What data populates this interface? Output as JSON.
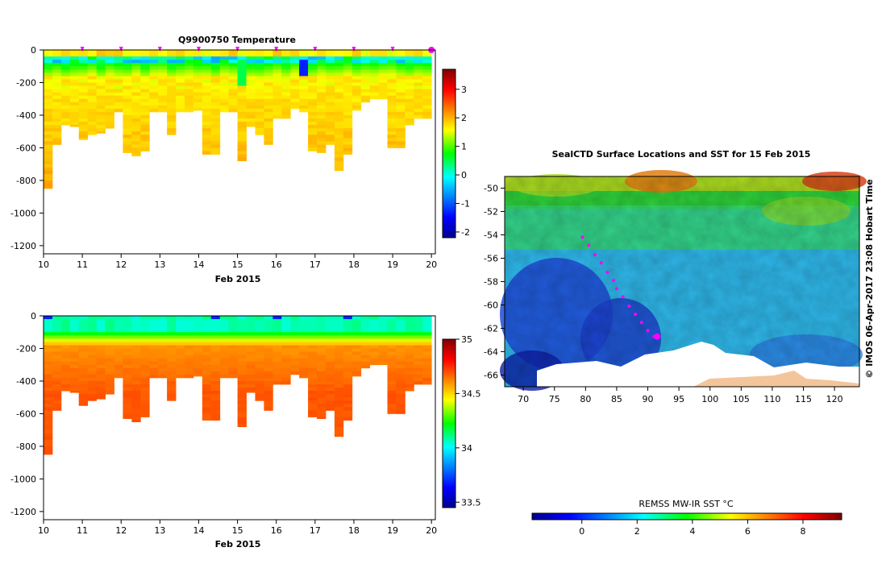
{
  "chart_data": [
    {
      "type": "heatmap",
      "title": "Q9900750  Temperature",
      "xlabel": "Feb 2015",
      "ylabel": "",
      "xlim": [
        10,
        20.1
      ],
      "ylim": [
        -1250,
        0
      ],
      "x_ticks": [
        "10",
        "11",
        "12",
        "13",
        "14",
        "15",
        "16",
        "17",
        "18",
        "19",
        "20"
      ],
      "y_ticks": [
        "0",
        "-200",
        "-400",
        "-600",
        "-800",
        "-1000",
        "-1200"
      ],
      "colorbar": {
        "min": -2.2,
        "max": 3.7,
        "ticks": [
          "3",
          "2",
          "1",
          "0",
          "-1",
          "-2"
        ]
      },
      "surface_markers_x": [
        11,
        12,
        13,
        14,
        15,
        16,
        17,
        18,
        19,
        20
      ],
      "profile_max_depth": [
        -850,
        -580,
        -460,
        -470,
        -550,
        -520,
        -510,
        -480,
        -380,
        -630,
        -650,
        -620,
        -380,
        -380,
        -520,
        -380,
        -380,
        -370,
        -640,
        -640,
        -380,
        -380,
        -680,
        -470,
        -520,
        -580,
        -420,
        -420,
        -360,
        -380,
        -620,
        -630,
        -580,
        -740,
        -640,
        -370,
        -320,
        -300,
        -300,
        -600,
        -600,
        -460,
        -420,
        -420
      ]
    },
    {
      "type": "heatmap",
      "title": "",
      "xlabel": "Feb 2015",
      "ylabel": "",
      "xlim": [
        10,
        20.1
      ],
      "ylim": [
        -1250,
        0
      ],
      "x_ticks": [
        "10",
        "11",
        "12",
        "13",
        "14",
        "15",
        "16",
        "17",
        "18",
        "19",
        "20"
      ],
      "y_ticks": [
        "0",
        "-200",
        "-400",
        "-600",
        "-800",
        "-1000",
        "-1200"
      ],
      "colorbar": {
        "min": 33.45,
        "max": 35.0,
        "ticks": [
          "35",
          "34.5",
          "34",
          "33.5"
        ]
      }
    },
    {
      "type": "heatmap",
      "title": "SealCTD Surface Locations and SST for 15 Feb 2015",
      "xlim": [
        67,
        124
      ],
      "ylim": [
        -67,
        -49
      ],
      "x_ticks": [
        "70",
        "75",
        "80",
        "85",
        "90",
        "95",
        "100",
        "105",
        "110",
        "115",
        "120"
      ],
      "y_ticks": [
        "-50",
        "-52",
        "-54",
        "-56",
        "-58",
        "-60",
        "-62",
        "-64",
        "-66"
      ],
      "track": {
        "lon": [
          79.5,
          80.5,
          81.5,
          82.5,
          83.5,
          84.5,
          85,
          86,
          87,
          88,
          89,
          90,
          91
        ],
        "lat": [
          -54.2,
          -54.9,
          -55.7,
          -56.4,
          -57.2,
          -57.9,
          -58.6,
          -59.3,
          -60.1,
          -60.8,
          -61.5,
          -62.2,
          -62.7
        ]
      },
      "current_position": {
        "lon": 91.5,
        "lat": -62.7
      },
      "colorbar": {
        "label": "REMSS MW-IR SST °C",
        "min": -1.8,
        "max": 9.4,
        "ticks": [
          "0",
          "2",
          "4",
          "6",
          "8"
        ]
      }
    }
  ],
  "side_credit": "© IMOS 06-Apr-2017 23:08 Hobart Time"
}
